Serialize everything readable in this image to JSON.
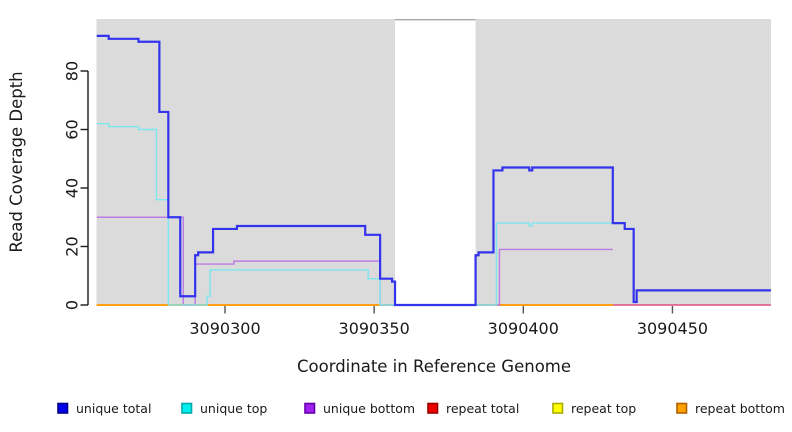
{
  "figure": {
    "ylabel": "Read Coverage Depth",
    "xlabel": "Coordinate in Reference Genome"
  },
  "chart_data": {
    "type": "line",
    "subtype": "step",
    "title": "",
    "xlabel": "Coordinate in Reference Genome",
    "ylabel": "Read Coverage Depth",
    "xlim": [
      3090257,
      3090483
    ],
    "ylim": [
      0,
      97
    ],
    "x_ticks": [
      3090300,
      3090350,
      3090400,
      3090450
    ],
    "y_ticks": [
      0,
      20,
      40,
      60,
      80
    ],
    "grid": false,
    "plot_bg": "#DBDBDB",
    "no_data_region": {
      "x_start": 3090357,
      "x_end": 3090384
    },
    "legend_position": "bottom",
    "draw_order": [
      4,
      3,
      5,
      2,
      1,
      0
    ],
    "series": [
      {
        "name": "unique total",
        "color": "#3333EE",
        "swatch_fill": "#0000EE",
        "swatch_border": "#000088",
        "width": 2.2,
        "segments": [
          {
            "points": [
              [
                3090257,
                92
              ],
              [
                3090261,
                91
              ],
              [
                3090271,
                90
              ],
              [
                3090278,
                66
              ],
              [
                3090281,
                30
              ],
              [
                3090285,
                3
              ],
              [
                3090290,
                17
              ],
              [
                3090291,
                18
              ],
              [
                3090296,
                26
              ],
              [
                3090304,
                27
              ],
              [
                3090347,
                24
              ],
              [
                3090352,
                9
              ],
              [
                3090356,
                8
              ],
              [
                3090357,
                0
              ],
              [
                3090384,
                17
              ],
              [
                3090385,
                18
              ],
              [
                3090390,
                46
              ],
              [
                3090393,
                47
              ],
              [
                3090402,
                46
              ],
              [
                3090403,
                47
              ],
              [
                3090430,
                28
              ],
              [
                3090434,
                26
              ],
              [
                3090437,
                1
              ],
              [
                3090438,
                5
              ]
            ],
            "end": 3090483
          }
        ]
      },
      {
        "name": "unique top",
        "color": "#7DE6EE",
        "swatch_fill": "#00EEEE",
        "swatch_border": "#00AAAA",
        "width": 1.4,
        "segments": [
          {
            "points": [
              [
                3090257,
                62
              ],
              [
                3090261,
                61
              ],
              [
                3090271,
                60
              ],
              [
                3090277,
                36
              ],
              [
                3090281,
                0
              ],
              [
                3090294,
                3
              ],
              [
                3090295,
                12
              ],
              [
                3090348,
                9
              ],
              [
                3090352,
                0
              ],
              [
                3090391,
                28
              ],
              [
                3090402,
                27
              ],
              [
                3090403,
                28
              ]
            ],
            "end": 3090430
          }
        ]
      },
      {
        "name": "unique bottom",
        "color": "#BC7BE4",
        "swatch_fill": "#A020F0",
        "swatch_border": "#6600AA",
        "width": 1.4,
        "segments": [
          {
            "points": [
              [
                3090257,
                30
              ],
              [
                3090286,
                0
              ],
              [
                3090290,
                14
              ],
              [
                3090303,
                15
              ],
              [
                3090352,
                0
              ],
              [
                3090392,
                19
              ]
            ],
            "end": 3090430
          }
        ]
      },
      {
        "name": "repeat total",
        "color": "#E0507E",
        "swatch_fill": "#EE0000",
        "swatch_border": "#990000",
        "width": 1.4,
        "segments": [
          {
            "points": [
              [
                3090257,
                0
              ]
            ],
            "end": 3090483
          }
        ]
      },
      {
        "name": "repeat top",
        "color": "#FFFF00",
        "swatch_fill": "#FFFF00",
        "swatch_border": "#AAAA00",
        "width": 1.4,
        "segments": [
          {
            "points": [
              [
                3090257,
                0
              ]
            ],
            "end": 3090430
          }
        ]
      },
      {
        "name": "repeat bottom",
        "color": "#FFA013",
        "swatch_fill": "#FFA200",
        "swatch_border": "#B06000",
        "width": 2,
        "segments": [
          {
            "points": [
              [
                3090257,
                0
              ]
            ],
            "end": 3090356
          },
          {
            "points": [
              [
                3090384,
                0
              ]
            ],
            "end": 3090430
          }
        ]
      }
    ]
  }
}
